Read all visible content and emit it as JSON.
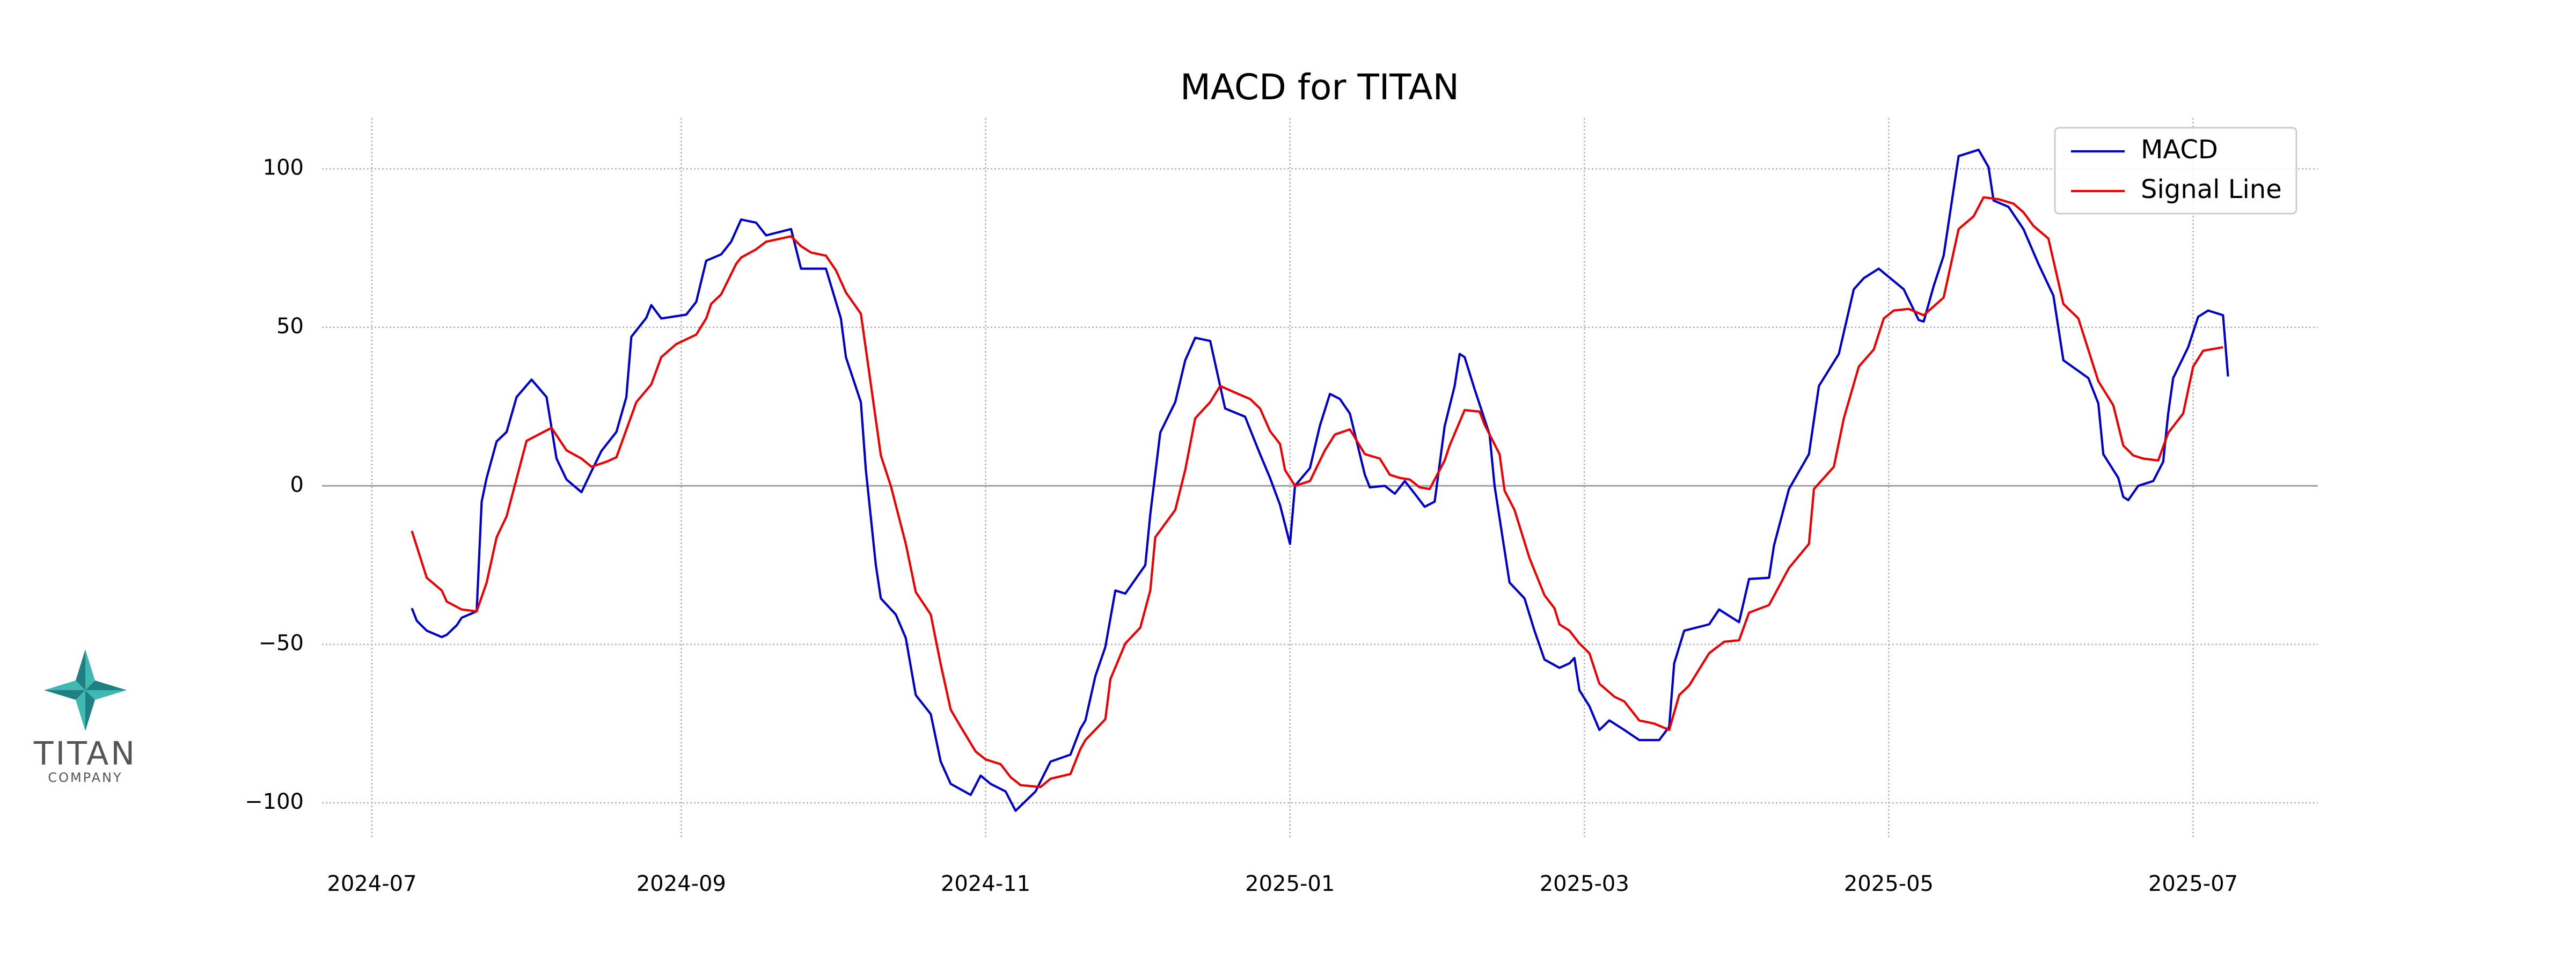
{
  "chart_data": {
    "type": "line",
    "title": "MACD for TITAN",
    "xlim": [
      -10,
      390
    ],
    "xticks": [
      {
        "value": 0,
        "label": "2024-07"
      },
      {
        "value": 62,
        "label": "2024-09"
      },
      {
        "value": 123,
        "label": "2024-11"
      },
      {
        "value": 184,
        "label": "2025-01"
      },
      {
        "value": 243,
        "label": "2025-03"
      },
      {
        "value": 304,
        "label": "2025-05"
      },
      {
        "value": 365,
        "label": "2025-07"
      }
    ],
    "ylim": [
      -111,
      116
    ],
    "yticks": [
      {
        "value": -100,
        "label": "−100"
      },
      {
        "value": -50,
        "label": "−50"
      },
      0,
      50,
      100
    ],
    "grid": true,
    "hline": 0,
    "legend": "upper right",
    "series": [
      {
        "name": "MACD",
        "color": "#0000cc",
        "x": [
          8,
          9,
          11,
          14,
          15,
          17,
          18,
          21,
          22,
          23,
          25,
          27,
          29,
          32,
          35,
          37,
          39,
          42,
          44,
          46,
          49,
          51,
          52,
          55,
          56,
          58,
          63,
          65,
          67,
          70,
          72,
          74,
          77,
          79,
          84,
          86,
          91,
          94,
          95,
          98,
          99,
          101,
          102,
          105,
          107,
          109,
          112,
          114,
          116,
          120,
          122,
          124,
          127,
          129,
          133,
          136,
          140,
          142,
          143,
          145,
          147,
          149,
          151,
          155,
          156,
          158,
          161,
          163,
          165,
          168,
          171,
          175,
          178,
          180,
          182,
          184,
          185,
          188,
          190,
          192,
          194,
          196,
          199,
          200,
          203,
          205,
          207,
          209,
          211,
          213,
          215,
          217,
          218,
          219,
          221,
          224,
          225,
          228,
          231,
          233,
          235,
          238,
          240,
          241,
          242,
          244,
          246,
          248,
          251,
          254,
          258,
          260,
          261,
          263,
          268,
          270,
          274,
          276,
          280,
          281,
          284,
          288,
          290,
          294,
          297,
          299,
          302,
          307,
          310,
          311,
          313,
          315,
          318,
          322,
          324,
          325,
          328,
          331,
          334,
          337,
          339,
          344,
          346,
          347,
          350,
          351,
          352,
          354,
          357,
          359,
          360,
          361,
          364,
          366,
          368,
          371,
          372
        ],
        "values": [
          -38.6,
          -42.6,
          -45.7,
          -47.7,
          -47,
          -44,
          -41.6,
          -39.6,
          -5,
          2.5,
          14,
          17,
          28,
          33.5,
          28,
          8.6,
          2,
          -2,
          4.6,
          11,
          17,
          28,
          47,
          53,
          57,
          52.8,
          54,
          58,
          71,
          73,
          77,
          84,
          83,
          79,
          81,
          68.5,
          68.5,
          52.8,
          40.6,
          26.4,
          5,
          -25,
          -35.5,
          -40.6,
          -48,
          -66,
          -72,
          -87,
          -94,
          -97.5,
          -91.4,
          -94,
          -96.4,
          -102.5,
          -96.4,
          -87,
          -84.8,
          -76.6,
          -74,
          -60,
          -50.8,
          -33,
          -34,
          -25,
          -9,
          16.8,
          26.4,
          39.6,
          46.7,
          45.7,
          24.4,
          21.8,
          10,
          2.5,
          -6,
          -18.3,
          0,
          5.6,
          19,
          29,
          27.4,
          22.8,
          3.5,
          -0.5,
          0,
          -2.5,
          1.5,
          -2.5,
          -6.6,
          -5,
          18.8,
          31.5,
          41.6,
          40.6,
          30.5,
          16.2,
          0,
          -30.5,
          -35.5,
          -45.7,
          -54.8,
          -57.4,
          -56,
          -54.3,
          -64.5,
          -69.5,
          -77,
          -74,
          -77,
          -80.2,
          -80.2,
          -76,
          -56,
          -45.7,
          -43.7,
          -39,
          -43,
          -29.4,
          -29,
          -18.8,
          -1,
          10,
          31.5,
          41.6,
          62,
          65.5,
          68.5,
          62,
          52.3,
          51.8,
          63,
          72.6,
          104,
          106,
          100.5,
          90,
          88,
          81,
          70,
          60,
          39.6,
          34,
          26,
          10,
          2.5,
          -3.5,
          -4.5,
          0,
          1.5,
          7.6,
          22.8,
          34,
          43.7,
          53.3,
          55.3,
          53.8,
          34.5
        ]
      },
      {
        "name": "Signal Line",
        "color": "#ee0000",
        "x": [
          8,
          11,
          14,
          15,
          18,
          21,
          23,
          25,
          27,
          31,
          36,
          39,
          42,
          44,
          47,
          49,
          53,
          56,
          58,
          61,
          65,
          67,
          68,
          70,
          73,
          74,
          77,
          79,
          84,
          86,
          88,
          91,
          93,
          95,
          98,
          100,
          102,
          104,
          107,
          109,
          112,
          114,
          116,
          118,
          121,
          123,
          126,
          128,
          130,
          134,
          136,
          140,
          142,
          143,
          147,
          148,
          151,
          154,
          156,
          157,
          161,
          163,
          165,
          168,
          170,
          173,
          176,
          178,
          180,
          182,
          183,
          185,
          188,
          191,
          193,
          196,
          199,
          202,
          204,
          206,
          208,
          210,
          212,
          215,
          216,
          219,
          222,
          223,
          226,
          227,
          229,
          232,
          235,
          237,
          238,
          240,
          242,
          244,
          246,
          249,
          251,
          254,
          257,
          260,
          262,
          264,
          268,
          271,
          274,
          276,
          280,
          284,
          288,
          289,
          293,
          295,
          298,
          301,
          303,
          305,
          308,
          311,
          315,
          318,
          321,
          323,
          326,
          329,
          331,
          333,
          336,
          339,
          342,
          346,
          349,
          351,
          353,
          355,
          358,
          360,
          363,
          365,
          367,
          371
        ],
        "values": [
          -14.2,
          -29,
          -33,
          -36.5,
          -39,
          -39.6,
          -30.5,
          -16.2,
          -9.6,
          14.2,
          18.3,
          11.2,
          8.6,
          6,
          7.6,
          9,
          26.4,
          32,
          40.6,
          44.7,
          47.7,
          52.8,
          57.4,
          60.4,
          70,
          72,
          74.6,
          77,
          78.7,
          75.6,
          73.6,
          72.6,
          68,
          61,
          54.3,
          32,
          9.6,
          0,
          -18.3,
          -33.5,
          -40.6,
          -56.3,
          -70.6,
          -76,
          -83.8,
          -86.3,
          -87.8,
          -91.9,
          -94.4,
          -95,
          -92.4,
          -90.9,
          -83,
          -80.2,
          -73.6,
          -61,
          -49.7,
          -44.7,
          -33,
          -16.2,
          -7.6,
          5,
          21.3,
          26.4,
          31.5,
          29.4,
          27.4,
          24.4,
          17.3,
          13.2,
          5,
          0,
          1.5,
          11.2,
          16.2,
          17.8,
          10,
          8.6,
          3.5,
          2.5,
          2,
          -0.5,
          -1,
          8,
          12.7,
          23.9,
          23.4,
          19.3,
          10,
          -1.5,
          -7.6,
          -22.8,
          -34.5,
          -38.6,
          -43.7,
          -45.7,
          -49.7,
          -52.8,
          -62.4,
          -66.5,
          -68,
          -74,
          -75,
          -77,
          -66,
          -63,
          -52.8,
          -49.2,
          -48.7,
          -40,
          -37.6,
          -25.9,
          -18.3,
          -1,
          6,
          21.3,
          37.6,
          43,
          52.8,
          55.3,
          55.8,
          53.8,
          59.4,
          81,
          85,
          91,
          90.4,
          89,
          86.3,
          82,
          78,
          57.4,
          52.8,
          33,
          25.4,
          12.7,
          9.6,
          8.6,
          8,
          16.7,
          22.8,
          37.6,
          42.6,
          43.7
        ]
      }
    ]
  },
  "logo": {
    "name": "TITAN",
    "tagline": "COMPANY"
  }
}
